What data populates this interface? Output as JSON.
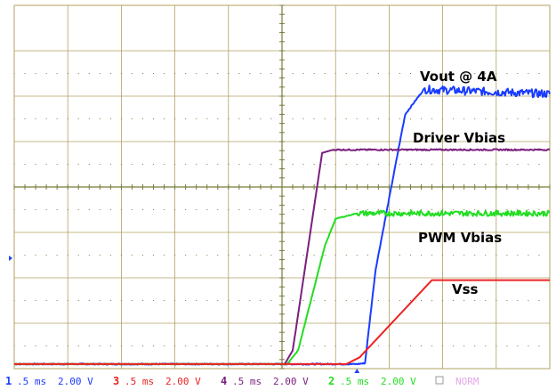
{
  "chart_data": {
    "type": "line",
    "title": "",
    "xlabel": "",
    "ylabel": "",
    "divisions": {
      "x": 10,
      "y": 8
    },
    "xlim": [
      0,
      10
    ],
    "ylim": [
      0,
      8
    ],
    "grid": true,
    "series": [
      {
        "name": "Vout @ 4A",
        "color": "#1a3cff",
        "noise": 0.18,
        "points": [
          [
            0,
            0.1
          ],
          [
            6.4,
            0.1
          ],
          [
            6.55,
            0.12
          ],
          [
            6.75,
            2.2
          ],
          [
            7.3,
            5.6
          ],
          [
            7.65,
            6.15
          ],
          [
            10,
            6.05
          ]
        ]
      },
      {
        "name": "Driver Vbias",
        "color": "#7a1f7e",
        "noise": 0.03,
        "points": [
          [
            0,
            0.1
          ],
          [
            5.05,
            0.1
          ],
          [
            5.2,
            0.4
          ],
          [
            5.75,
            4.75
          ],
          [
            5.95,
            4.82
          ],
          [
            10,
            4.82
          ]
        ]
      },
      {
        "name": "PWM Vbias",
        "color": "#22dd22",
        "noise": 0.12,
        "points": [
          [
            0,
            0.1
          ],
          [
            5.1,
            0.1
          ],
          [
            5.3,
            0.4
          ],
          [
            5.8,
            2.7
          ],
          [
            6.0,
            3.3
          ],
          [
            6.4,
            3.42
          ],
          [
            10,
            3.42
          ]
        ]
      },
      {
        "name": "Vss",
        "color": "#ee2222",
        "noise": 0.0,
        "points": [
          [
            0,
            0.1
          ],
          [
            6.2,
            0.1
          ],
          [
            6.45,
            0.25
          ],
          [
            7.8,
            1.95
          ],
          [
            10,
            1.95
          ]
        ]
      }
    ]
  },
  "channel_settings": [
    {
      "channel": "1",
      "timebase": ".5 ms",
      "volts": "2.00 V",
      "color": "#1a3cff"
    },
    {
      "channel": "3",
      "timebase": ".5 ms",
      "volts": "2.00 V",
      "color": "#ee2222"
    },
    {
      "channel": "4",
      "timebase": ".5 ms",
      "volts": "2.00 V",
      "color": "#7a1f7e"
    },
    {
      "channel": "2",
      "timebase": ".5 ms",
      "volts": "2.00 V",
      "color": "#22dd22"
    }
  ],
  "status_extra": "NORM",
  "colors": {
    "grid": "#b0a060",
    "screen_bg": "#ffffff",
    "axis_dots": "#7a7a3a"
  }
}
